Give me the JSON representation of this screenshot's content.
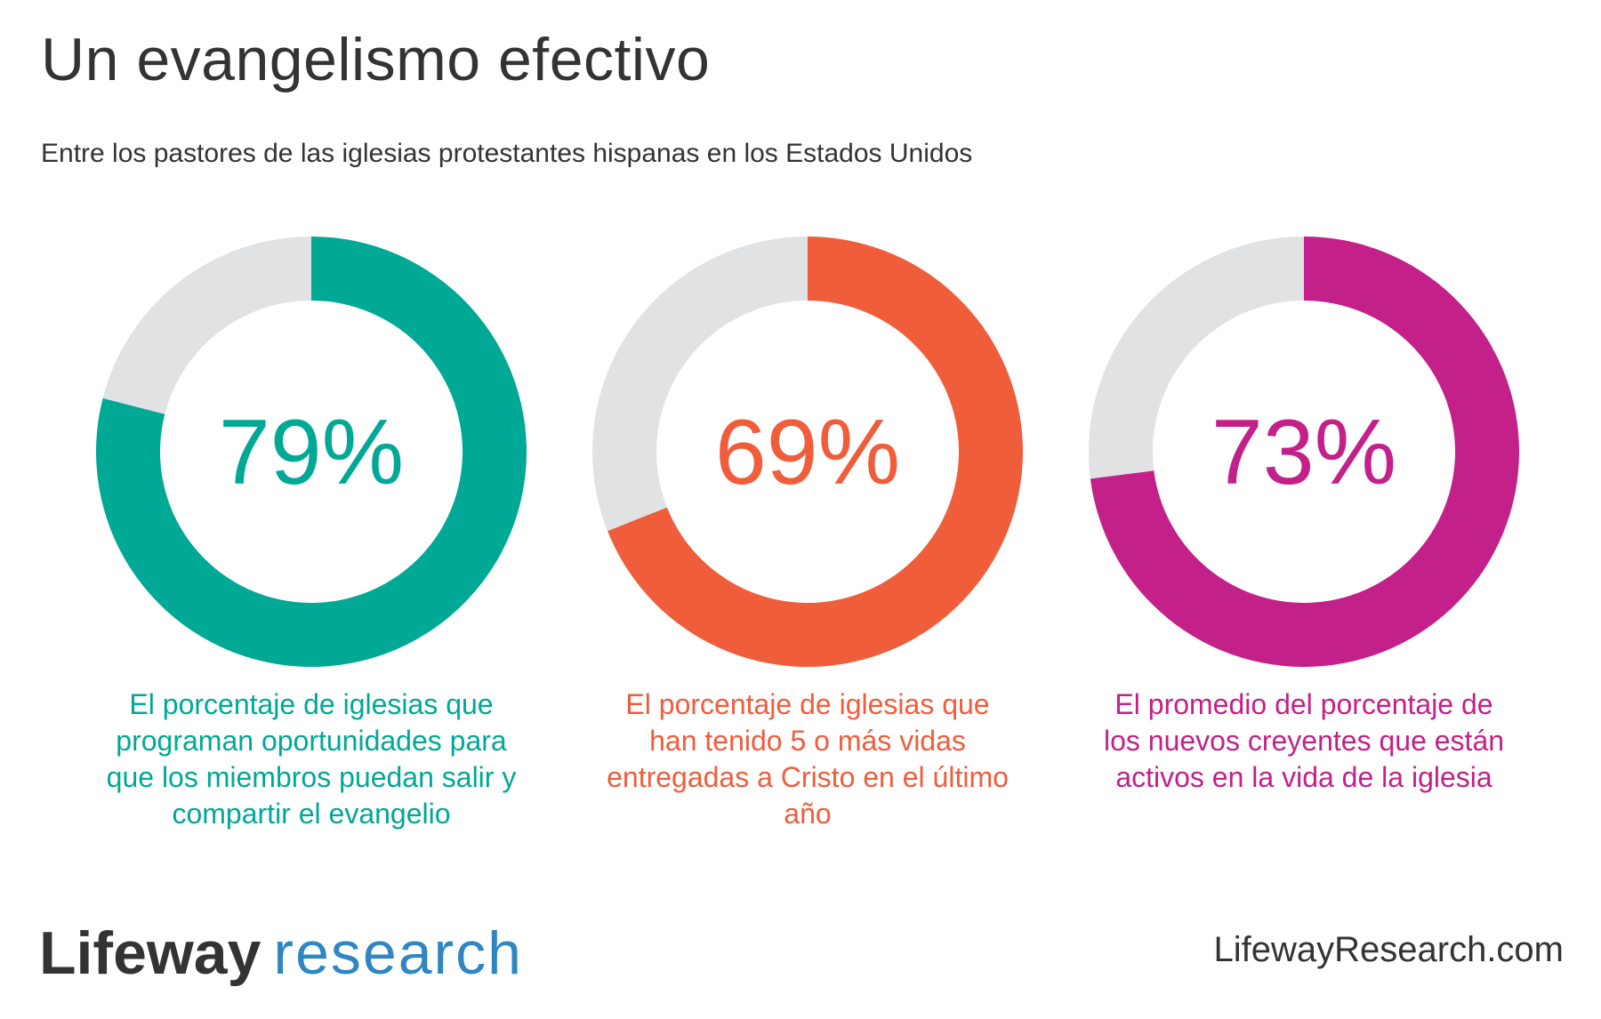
{
  "header": {
    "title": "Un evangelismo efectivo",
    "subtitle": "Entre los pastores de las iglesias protestantes hispanas en los Estados Unidos"
  },
  "chart_data": [
    {
      "type": "pie",
      "style": "donut",
      "value": 79,
      "label": "79%",
      "caption": "El porcentaje de iglesias que programan oportunidades para que los miembros puedan salir y compartir el evangelio",
      "color": "#00a896",
      "track_color": "#e1e2e4"
    },
    {
      "type": "pie",
      "style": "donut",
      "value": 69,
      "label": "69%",
      "caption": "El porcentaje de iglesias que han tenido 5 o más vidas entregadas a Cristo en el último año",
      "color": "#f05d3b",
      "track_color": "#e1e2e4"
    },
    {
      "type": "pie",
      "style": "donut",
      "value": 73,
      "label": "73%",
      "caption": "El promedio del porcentaje de los nuevos creyentes que están activos en la vida de la iglesia",
      "color": "#c32189",
      "track_color": "#e1e2e4"
    }
  ],
  "footer": {
    "logo_bold": "Lifeway",
    "logo_light": "research",
    "website": "LifewayResearch.com"
  }
}
